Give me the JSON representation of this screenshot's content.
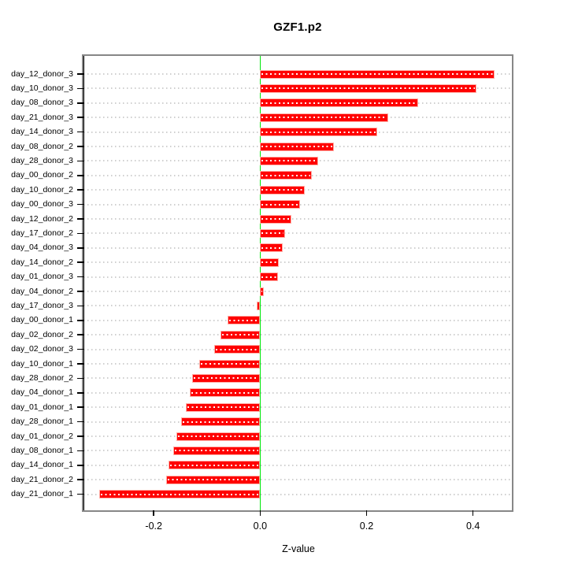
{
  "chart_data": {
    "type": "bar",
    "orientation": "horizontal",
    "title": "GZF1.p2",
    "xlabel": "Z-value",
    "ylabel": "",
    "legend": null,
    "grid": "dotted-horizontal",
    "xlim": [
      -0.332,
      0.473
    ],
    "xticks": [
      -0.2,
      0.0,
      0.2,
      0.4
    ],
    "xtick_labels": [
      "-0.2",
      "0.0",
      "0.2",
      "0.4"
    ],
    "zero_reference_line": 0.0,
    "colors": {
      "bar_fill": "#ff0000",
      "bar_border": "#ffb0a8",
      "bar_center_dots": "#ffffff",
      "zero_line": "#00e60b",
      "gridline": "#cfcfcf",
      "frame": "#878787",
      "axis": "#000000",
      "text": "#000000",
      "background": "#ffffff"
    },
    "categories": [
      "day_12_donor_3",
      "day_10_donor_3",
      "day_08_donor_3",
      "day_21_donor_3",
      "day_14_donor_3",
      "day_08_donor_2",
      "day_28_donor_3",
      "day_00_donor_2",
      "day_10_donor_2",
      "day_00_donor_3",
      "day_12_donor_2",
      "day_17_donor_2",
      "day_04_donor_3",
      "day_14_donor_2",
      "day_01_donor_3",
      "day_04_donor_2",
      "day_17_donor_3",
      "day_00_donor_1",
      "day_02_donor_2",
      "day_02_donor_3",
      "day_10_donor_1",
      "day_28_donor_2",
      "day_04_donor_1",
      "day_01_donor_1",
      "day_28_donor_1",
      "day_01_donor_2",
      "day_08_donor_1",
      "day_14_donor_1",
      "day_21_donor_2",
      "day_21_donor_1"
    ],
    "values": [
      0.441,
      0.407,
      0.297,
      0.241,
      0.22,
      0.139,
      0.109,
      0.097,
      0.084,
      0.075,
      0.058,
      0.047,
      0.042,
      0.035,
      0.034,
      0.007,
      -0.007,
      -0.061,
      -0.074,
      -0.086,
      -0.115,
      -0.128,
      -0.132,
      -0.14,
      -0.148,
      -0.157,
      -0.163,
      -0.172,
      -0.177,
      -0.303
    ]
  }
}
